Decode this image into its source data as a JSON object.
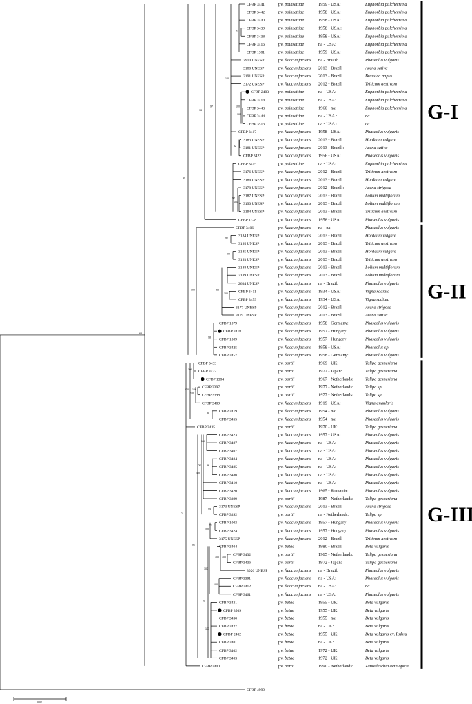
{
  "rows": [
    {
      "id": "CFBP 3441",
      "pv": "poinsettiae",
      "info": "1959 - USA:",
      "host": "Euphorbia pulcherrima"
    },
    {
      "id": "CFBP 3442",
      "pv": "poinsettiae",
      "info": "1958 - USA:",
      "host": "Euphorbia pulcherrima"
    },
    {
      "id": "CFBP 3440",
      "pv": "poinsettiae",
      "info": "1958 - USA:",
      "host": "Euphorbia pulcherrima"
    },
    {
      "id": "CFBP 3439",
      "pv": "poinsettiae",
      "info": "1958 - USA :",
      "host": "Euphorbia pulcherrima"
    },
    {
      "id": "CFBP 3438",
      "pv": "poinsettiae",
      "info": "1958 - USA:",
      "host": "Euphorbia pulcherrima"
    },
    {
      "id": "CFBP 3416",
      "pv": "poinsettiae",
      "info": "na - USA:",
      "host": "Euphorbia pulcherrima"
    },
    {
      "id": "CFBP 1381",
      "pv": "poinsettiae",
      "info": "1959 - USA:",
      "host": "Euphorbia pulcherrima"
    },
    {
      "id": "2910 UNESP",
      "pv": "flaccumfaciens",
      "info": "na - Brazil:",
      "host": "Phaseolus vulgaris"
    },
    {
      "id": "3180 UNESP",
      "pv": "flaccumfaciens",
      "info": "2013 - Brazil:",
      "host": "Avena sativa"
    },
    {
      "id": "3191 UNESP",
      "pv": "flaccumfaciens",
      "info": "2013 - Brazil:",
      "host": "Brassica napus"
    },
    {
      "id": "3172 UNESP",
      "pv": "flaccumfaciens",
      "info": "2012 - Brazil:",
      "host": "Triticum aestivum"
    },
    {
      "id": "CFBP 2403",
      "pv": "poinsettiae",
      "info": "na - USA:",
      "host": "Euphorbia pulcherrima",
      "dot": true
    },
    {
      "id": "CFBP 3414",
      "pv": "poinsettiae",
      "info": "na - USA:",
      "host": "Euphorbia pulcherrima"
    },
    {
      "id": "CFBP 3443",
      "pv": "poinsettiae",
      "info": "1960 - na:",
      "host": "Euphorbia pulcherrima"
    },
    {
      "id": "CFBP 3444",
      "pv": "poinsettiae",
      "info": "na - USA :",
      "host": "na"
    },
    {
      "id": "CFBP 3513",
      "pv": "poinsettiae",
      "info": "na - USA :",
      "host": "na"
    },
    {
      "id": "CFBP 3417",
      "pv": "flaccumfaciens",
      "info": "1958 - USA:",
      "host": "Phaseolus vulgaris"
    },
    {
      "id": "3183 UNESP",
      "pv": "flaccumfaciens",
      "info": "2013 - Brazil:",
      "host": "Hordeum vulgare"
    },
    {
      "id": "3181 UNESP",
      "pv": "flaccumfaciens",
      "info": "2013 - Brazil :",
      "host": "Avena sativa"
    },
    {
      "id": "CFBP 3422",
      "pv": "flaccumfaciens",
      "info": "1956 - USA:",
      "host": "Phaseolus vulgaris"
    },
    {
      "id": "CFBP 3415",
      "pv": "poinsettiae",
      "info": "na - USA:",
      "host": "Euphorbia pulcherrima"
    },
    {
      "id": "3176 UNESP",
      "pv": "flaccumfaciens",
      "info": "2012 - Brazil:",
      "host": "Triticum aestivum"
    },
    {
      "id": "3186 UNESP",
      "pv": "flaccumfaciens",
      "info": "2013 - Brazil:",
      "host": "Hordeum vulgare"
    },
    {
      "id": "3178 UNESP",
      "pv": "flaccumfaciens",
      "info": "2012 - Brazil :",
      "host": "Avena strigosa"
    },
    {
      "id": "3187 UNESP",
      "pv": "flaccumfaciens",
      "info": "2013 - Brazil:",
      "host": "Lolium multiflorum"
    },
    {
      "id": "3190 UNESP",
      "pv": "flaccumfaciens",
      "info": "2013 - Brazil:",
      "host": "Lolium multiflorum"
    },
    {
      "id": "3194 UNESP",
      "pv": "flaccumfaciens",
      "info": "2013 - Brazil:",
      "host": "Triticum aestivum"
    },
    {
      "id": "CFBP 1378",
      "pv": "flaccumfaciens",
      "info": "1958 - USA:",
      "host": "Phaseolus vulgaris"
    },
    {
      "id": "CFBP 3406",
      "pv": "flaccumfaciens",
      "info": "na -  na:",
      "host": "Phaseolus vulgaris"
    },
    {
      "id": "3184 UNESP",
      "pv": "flaccumfaciens",
      "info": "2013 - Brazil:",
      "host": "Hordeum vulgare"
    },
    {
      "id": "3195 UNESP",
      "pv": "flaccumfaciens",
      "info": "2013 - Brazil:",
      "host": "Triticum aestivum"
    },
    {
      "id": "3185 UNESP",
      "pv": "flaccumfaciens",
      "info": "2013 - Brazil:",
      "host": "Hordeum vulgare"
    },
    {
      "id": "3193 UNESP",
      "pv": "flaccumfaciens",
      "info": "2013 - Brazil:",
      "host": "Triticum aestivum"
    },
    {
      "id": "3188 UNESP",
      "pv": "flaccumfaciens",
      "info": "2013 - Brazil:",
      "host": "Lolium multiflorum"
    },
    {
      "id": "3189 UNESP",
      "pv": "flaccumfaciens",
      "info": "2013 - Brazil:",
      "host": "Lolium multiflorum"
    },
    {
      "id": "2634 UNESP",
      "pv": "flaccumfaciens",
      "info": "na - Brazil:",
      "host": "Phaseolus vulgaris"
    },
    {
      "id": "CFBP 3411",
      "pv": "flaccumfaciens",
      "info": "1934 - USA:",
      "host": "Vigna radiata"
    },
    {
      "id": "CFBP 3459",
      "pv": "flaccumfaciens",
      "info": "1934 - USA:",
      "host": "Vigna radiata"
    },
    {
      "id": "3177 UNESP",
      "pv": "flaccumfaciens",
      "info": "2012 - Brazil:",
      "host": "Avena strigosa"
    },
    {
      "id": "3179 UNESP",
      "pv": "flaccumfaciens",
      "info": "2013 - Brazil:",
      "host": "Avena sativa"
    },
    {
      "id": "CFBP 1379",
      "pv": "flaccumfaciens",
      "info": "1958 - Germany:",
      "host": "Phaseolus vulgaris"
    },
    {
      "id": "CFBP 3418",
      "pv": "flaccumfaciens",
      "info": "1957 - Hungary:",
      "host": "Phaseolus vulgaris",
      "dot": true
    },
    {
      "id": "CFBP 1389",
      "pv": "flaccumfaciens",
      "info": "1957 - Hungary:",
      "host": "Phaseolus vulgaris"
    },
    {
      "id": "CFBP 3425",
      "pv": "flaccumfaciens",
      "info": "1958 - USA:",
      "host": "Phaseolus sp."
    },
    {
      "id": "CFBP 3457",
      "pv": "flaccumfaciens",
      "info": "1958 - Germany:",
      "host": "Phaseolus vulgaris"
    },
    {
      "id": "CFBP 3433",
      "pv": "oortii",
      "info": "1969 - UK:",
      "host": "Tulipa gesneriana"
    },
    {
      "id": "CFBP 3437",
      "pv": "oortii",
      "info": "1972 - Japan:",
      "host": "Tulipa gesneriana"
    },
    {
      "id": "CFBP 1384",
      "pv": "oortii",
      "info": "1967 - Netherlands:",
      "host": "Tulipa gesneriana",
      "dot": true
    },
    {
      "id": "CFBP 3397",
      "pv": "oortii",
      "info": "1977 - Netherlands:",
      "host": "Tulipa sp."
    },
    {
      "id": "CFBP 3398",
      "pv": "oortii",
      "info": "1977 - Netherlands:",
      "host": "Tulipa sp."
    },
    {
      "id": "CFBP 3409",
      "pv": "flaccumfaciens",
      "info": "1919 - USA:",
      "host": "Vigna angularis"
    },
    {
      "id": "CFBP 3419",
      "pv": "flaccumfaciens",
      "info": "1954 -  na:",
      "host": "Phaseolus vulgaris"
    },
    {
      "id": "CFBP 3455",
      "pv": "flaccumfaciens",
      "info": "1954 -  na:",
      "host": "Phaseolus vulgaris"
    },
    {
      "id": "CFBP 3435",
      "pv": "oortii",
      "info": "1970 - UK:",
      "host": "Tulipa gesneriana"
    },
    {
      "id": "CFBP 3423",
      "pv": "flaccumfaciens",
      "info": "1957 - USA:",
      "host": "Phaseolus vulgaris"
    },
    {
      "id": "CFBP 3487",
      "pv": "flaccumfaciens",
      "info": "na - USA:",
      "host": "Phaseolus vulgaris"
    },
    {
      "id": "CFBP 3407",
      "pv": "flaccumfaciens",
      "info": "na - USA:",
      "host": "Phaseolus vulgaris"
    },
    {
      "id": "CFBP 3484",
      "pv": "flaccumfaciens",
      "info": "na - USA:",
      "host": "Phaseolus vulgaris"
    },
    {
      "id": "CFBP 3485",
      "pv": "flaccumfaciens",
      "info": "na - USA:",
      "host": "Phaseolus vulgaris"
    },
    {
      "id": "CFBP 3486",
      "pv": "flaccumfaciens",
      "info": "na - USA:",
      "host": "Phaseolus vulgaris"
    },
    {
      "id": "CFBP 3410",
      "pv": "flaccumfaciens",
      "info": "na - USA:",
      "host": "Phaseolus vulgaris"
    },
    {
      "id": "CFBP 3420",
      "pv": "flaccumfaciens",
      "info": "1965 - Romania:",
      "host": "Phaseolus vulgaris"
    },
    {
      "id": "CFBP 3399",
      "pv": "oortii",
      "info": "1987 - Netherlands:",
      "host": "Tulipa gesneriana"
    },
    {
      "id": "3173 UNESP",
      "pv": "flaccumfaciens",
      "info": "2013 - Brazil:",
      "host": "Avena strigosa"
    },
    {
      "id": "CFBP 3392",
      "pv": "oortii",
      "info": "na - Netherlands:",
      "host": "Tulipa sp."
    },
    {
      "id": "CFBP 1003",
      "pv": "flaccumfaciens",
      "info": "1957 - Hungary:",
      "host": "Phaseolus vulgaris"
    },
    {
      "id": "CFBP 3424",
      "pv": "flaccumfaciens",
      "info": "1957 - Hungary:",
      "host": "Phaseolus vulgaris"
    },
    {
      "id": "3175 UNESP",
      "pv": "flaccumfaciens",
      "info": "2012 - Brazil:",
      "host": "Triticum aestivum"
    },
    {
      "id": "CFBP 3404",
      "pv": "betae",
      "info": "1980 - Brazil:",
      "host": "Beta vulgaris"
    },
    {
      "id": "CFBP 3432",
      "pv": "oortii",
      "info": "1965 - Netherlands:",
      "host": "Tulipa gesneriana"
    },
    {
      "id": "CFBP 3436",
      "pv": "oortii",
      "info": "1972 - Japan:",
      "host": "Tulipa gesneriana"
    },
    {
      "id": "3026 UNESP",
      "pv": "flaccumfaciens",
      "info": "na - Brazil:",
      "host": "Phaseolus vulgaris"
    },
    {
      "id": "CFBP 3391",
      "pv": "flaccumfaciens",
      "info": "na - USA:",
      "host": "Phaseolus vulgaris"
    },
    {
      "id": "CFBP 3412",
      "pv": "flaccumfaciens",
      "info": "na - USA:",
      "host": "na"
    },
    {
      "id": "CFBP 3461",
      "pv": "flaccumfaciens",
      "info": "na - USA:",
      "host": "Phaseolus vulgaris"
    },
    {
      "id": "CFBP 3431",
      "pv": "betae",
      "info": "1955 - UK:",
      "host": "Beta vulgaris"
    },
    {
      "id": "CFBP 3509",
      "pv": "betae",
      "info": "1955 - UK:",
      "host": "Beta vulgaris",
      "dot": true
    },
    {
      "id": "CFBP 3430",
      "pv": "betae",
      "info": "1955 - na:",
      "host": "Beta vulgaris"
    },
    {
      "id": "CFBP 3427",
      "pv": "betae",
      "info": "na - UK:",
      "host": "Beta vulgaris"
    },
    {
      "id": "CFBP 2402",
      "pv": "betae",
      "info": "1955 - UK:",
      "host": "Beta vulgaris",
      "hostSuffix": " cv. Rubra",
      "dot": true
    },
    {
      "id": "CFBP 3401",
      "pv": "betae",
      "info": "na - UK:",
      "host": "Beta vulgaris"
    },
    {
      "id": "CFBP 3402",
      "pv": "betae",
      "info": "1972 - UK:",
      "host": "Beta vulgaris"
    },
    {
      "id": "CFBP 3403",
      "pv": "betae",
      "info": "1972 - UK:",
      "host": "Beta vulgaris"
    },
    {
      "id": "CFBP 3400",
      "pv": "oortii",
      "info": "1990 - Netherlands:",
      "host": "Zantedeschia aethiopica"
    }
  ],
  "outgroup": "CFBP 4999",
  "pv_prefix": "pv.",
  "groups": [
    {
      "label": "G-I"
    },
    {
      "label": "G-II"
    },
    {
      "label": "G-III"
    }
  ],
  "bootstrap": [
    "97",
    "100",
    "100",
    "92",
    "100",
    "92",
    "100",
    "98",
    "97",
    "100",
    "100",
    "65",
    "99",
    "98",
    "100",
    "100",
    "100",
    "88",
    "100",
    "100",
    "82",
    "72",
    "99",
    "100",
    "97",
    "100",
    "100",
    "100",
    "100",
    "100",
    "92",
    "81",
    "71",
    "99",
    "68",
    "100",
    "92"
  ],
  "scale": {
    "label": "0.02"
  }
}
